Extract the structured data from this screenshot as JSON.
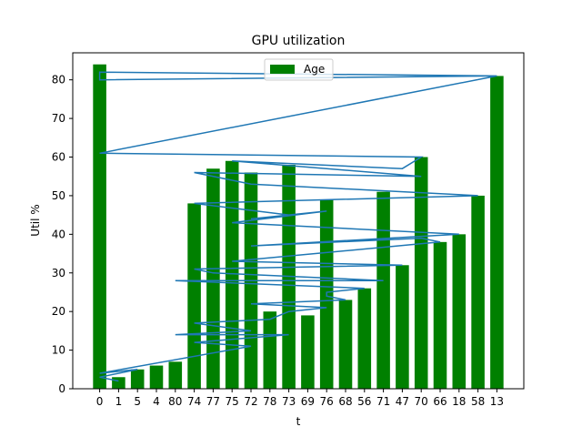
{
  "chart_data": {
    "type": "bar",
    "title": "GPU utilization",
    "xlabel": "t",
    "ylabel": "Util %",
    "ylim": [
      0,
      87
    ],
    "yticks": [
      0,
      10,
      20,
      30,
      40,
      50,
      60,
      70,
      80
    ],
    "categories": [
      "0",
      "1",
      "5",
      "4",
      "80",
      "74",
      "77",
      "75",
      "72",
      "78",
      "73",
      "69",
      "76",
      "68",
      "56",
      "71",
      "47",
      "70",
      "66",
      "18",
      "58",
      "13"
    ],
    "series": [
      {
        "name": "Age",
        "kind": "bar",
        "color": "#008000",
        "values": [
          84,
          3,
          5,
          6,
          7,
          48,
          57,
          59,
          56,
          20,
          58,
          19,
          49,
          23,
          26,
          51,
          32,
          60,
          38,
          40,
          50,
          81
        ]
      },
      {
        "kind": "line",
        "color": "#1f77b4",
        "points": [
          [
            13,
            81
          ],
          [
            0,
            82
          ],
          [
            0,
            80
          ],
          [
            13,
            81
          ],
          [
            0,
            61
          ],
          [
            70,
            60
          ],
          [
            47,
            57
          ],
          [
            75,
            59
          ],
          [
            70,
            55
          ],
          [
            74,
            56
          ],
          [
            72,
            53
          ],
          [
            58,
            50
          ],
          [
            74,
            48
          ],
          [
            73,
            45
          ],
          [
            72,
            44
          ],
          [
            76,
            46
          ],
          [
            75,
            43
          ],
          [
            18,
            40
          ],
          [
            72,
            37
          ],
          [
            70,
            39
          ],
          [
            66,
            38
          ],
          [
            75,
            33
          ],
          [
            47,
            32
          ],
          [
            74,
            31
          ],
          [
            77,
            30
          ],
          [
            71,
            28
          ],
          [
            80,
            28
          ],
          [
            56,
            26
          ],
          [
            76,
            25
          ],
          [
            76,
            24
          ],
          [
            68,
            23
          ],
          [
            72,
            22
          ],
          [
            76,
            21
          ],
          [
            73,
            20
          ],
          [
            78,
            18
          ],
          [
            74,
            17
          ],
          [
            72,
            15
          ],
          [
            80,
            14
          ],
          [
            73,
            14
          ],
          [
            74,
            12
          ],
          [
            72,
            11
          ],
          [
            0,
            4
          ],
          [
            5,
            5
          ],
          [
            0,
            3
          ],
          [
            1,
            2
          ]
        ]
      }
    ],
    "legend": {
      "placement": "top-center",
      "entries": [
        "Age"
      ]
    },
    "grid": false
  }
}
